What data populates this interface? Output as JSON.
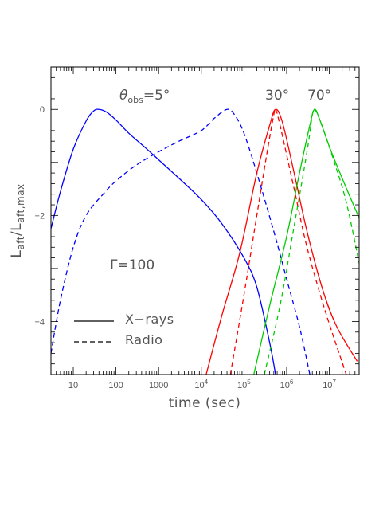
{
  "chart_data": {
    "type": "line",
    "xscale": "log",
    "xlim": [
      3,
      50000000
    ],
    "ylim": [
      -5.0,
      0.8
    ],
    "xlabel": "time (sec)",
    "ylabel": "L_aft/L_aft,max",
    "ylabel_main": "L",
    "ylabel_sub1": "aft",
    "ylabel_slash": "/L",
    "ylabel_sub2": "aft,max",
    "xticks": [
      {
        "value": 10,
        "label": "10"
      },
      {
        "value": 100,
        "label": "100"
      },
      {
        "value": 1000,
        "label": "1000"
      },
      {
        "value": 10000,
        "label": "10",
        "sup": "4"
      },
      {
        "value": 100000,
        "label": "10",
        "sup": "5"
      },
      {
        "value": 1000000,
        "label": "10",
        "sup": "6"
      },
      {
        "value": 10000000,
        "label": "10",
        "sup": "7"
      }
    ],
    "yticks": [
      {
        "value": 0,
        "label": "0"
      },
      {
        "value": -2,
        "label": "−2"
      },
      {
        "value": -4,
        "label": "−4"
      }
    ],
    "annotations": {
      "theta_symbol": "θ",
      "theta_sub": "obs",
      "theta_value": "=5°",
      "angle_30": "30°",
      "angle_70": "70°",
      "gamma": "Γ=100"
    },
    "legend": {
      "placement": "bottom-left",
      "entries": [
        {
          "label": "X−rays",
          "style": "solid"
        },
        {
          "label": "Radio",
          "style": "dashed"
        }
      ]
    },
    "series": [
      {
        "color": "#0000ff",
        "style": "solid",
        "points": [
          [
            3,
            -2.25
          ],
          [
            5,
            -1.55
          ],
          [
            10,
            -0.75
          ],
          [
            20,
            -0.22
          ],
          [
            30,
            -0.03
          ],
          [
            40,
            0.0
          ],
          [
            60,
            -0.05
          ],
          [
            100,
            -0.2
          ],
          [
            200,
            -0.45
          ],
          [
            500,
            -0.73
          ],
          [
            1000,
            -0.95
          ],
          [
            3000,
            -1.3
          ],
          [
            10000,
            -1.7
          ],
          [
            30000,
            -2.15
          ],
          [
            100000,
            -2.8
          ],
          [
            200000,
            -3.35
          ],
          [
            400000,
            -4.4
          ],
          [
            550000,
            -5.0
          ]
        ]
      },
      {
        "color": "#0000ff",
        "style": "dashed",
        "points": [
          [
            3,
            -4.6
          ],
          [
            5,
            -3.6
          ],
          [
            10,
            -2.6
          ],
          [
            20,
            -2.0
          ],
          [
            50,
            -1.6
          ],
          [
            100,
            -1.35
          ],
          [
            300,
            -1.05
          ],
          [
            1000,
            -0.8
          ],
          [
            3000,
            -0.6
          ],
          [
            10000,
            -0.4
          ],
          [
            20000,
            -0.17
          ],
          [
            40000,
            0.0
          ],
          [
            60000,
            -0.1
          ],
          [
            100000,
            -0.45
          ],
          [
            200000,
            -1.2
          ],
          [
            500000,
            -2.3
          ],
          [
            1000000,
            -3.2
          ],
          [
            2000000,
            -4.1
          ],
          [
            3500000,
            -5.0
          ]
        ]
      },
      {
        "color": "#ff0000",
        "style": "solid",
        "points": [
          [
            13000,
            -5.0
          ],
          [
            30000,
            -3.9
          ],
          [
            80000,
            -2.7
          ],
          [
            200000,
            -1.2
          ],
          [
            400000,
            -0.3
          ],
          [
            550000,
            0.0
          ],
          [
            800000,
            -0.25
          ],
          [
            1500000,
            -1.2
          ],
          [
            3000000,
            -2.3
          ],
          [
            7000000,
            -3.4
          ],
          [
            15000000,
            -4.1
          ],
          [
            45000000,
            -4.75
          ]
        ]
      },
      {
        "color": "#ff0000",
        "style": "dashed",
        "points": [
          [
            48000,
            -5.0
          ],
          [
            100000,
            -3.5
          ],
          [
            200000,
            -2.0
          ],
          [
            350000,
            -0.8
          ],
          [
            500000,
            -0.1
          ],
          [
            550000,
            0.0
          ],
          [
            700000,
            -0.3
          ],
          [
            1500000,
            -1.5
          ],
          [
            3000000,
            -2.6
          ],
          [
            8000000,
            -3.8
          ],
          [
            25000000,
            -5.0
          ]
        ]
      },
      {
        "color": "#00cc00",
        "style": "solid",
        "points": [
          [
            170000,
            -5.0
          ],
          [
            400000,
            -3.7
          ],
          [
            1000000,
            -2.4
          ],
          [
            2000000,
            -1.2
          ],
          [
            3500000,
            -0.3
          ],
          [
            4500000,
            0.0
          ],
          [
            6000000,
            -0.2
          ],
          [
            10000000,
            -0.7
          ],
          [
            20000000,
            -1.3
          ],
          [
            50000000,
            -2.05
          ]
        ]
      },
      {
        "color": "#00cc00",
        "style": "dashed",
        "points": [
          [
            300000,
            -5.0
          ],
          [
            700000,
            -3.7
          ],
          [
            1500000,
            -2.2
          ],
          [
            3000000,
            -0.8
          ],
          [
            4000000,
            -0.1
          ],
          [
            4500000,
            0.0
          ],
          [
            6000000,
            -0.2
          ],
          [
            12000000,
            -0.9
          ],
          [
            25000000,
            -1.75
          ],
          [
            50000000,
            -2.9
          ]
        ]
      }
    ]
  }
}
